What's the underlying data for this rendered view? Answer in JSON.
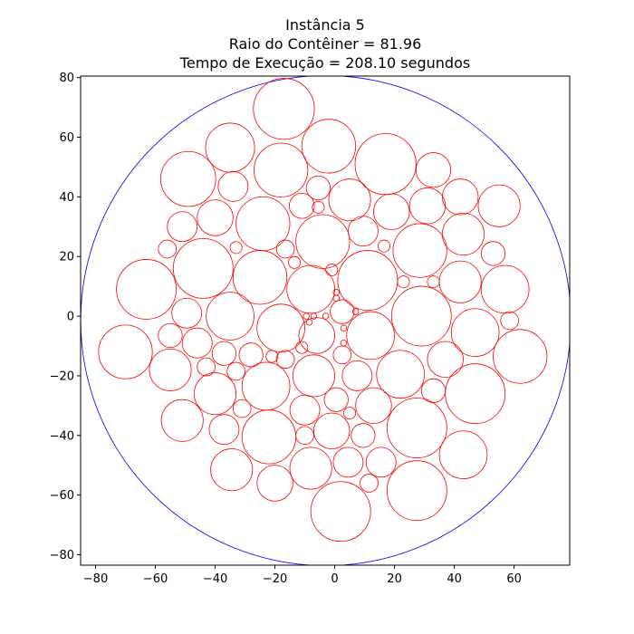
{
  "chart_data": {
    "type": "scatter",
    "title_lines": [
      "Instância 5",
      "Raio do Contêiner = 81.96",
      "Tempo de Execução = 208.10 segundos"
    ],
    "xlabel": "",
    "ylabel": "",
    "xlim": [
      -85,
      78.6
    ],
    "ylim": [
      -83.5,
      80.5
    ],
    "xticks": [
      -80,
      -60,
      -40,
      -20,
      0,
      20,
      40,
      60
    ],
    "yticks": [
      -80,
      -60,
      -40,
      -20,
      0,
      20,
      40,
      60,
      80
    ],
    "grid": false,
    "aspect": "equal",
    "container": {
      "center": [
        -3.0,
        -1.5
      ],
      "radius": 81.96,
      "color": "#0000ff"
    },
    "circle_color": "#ff0000",
    "circles": [
      [
        -17.0,
        69.5,
        10.2
      ],
      [
        -2.0,
        57.0,
        9.0
      ],
      [
        17.0,
        51.0,
        10.2
      ],
      [
        33.0,
        49.0,
        5.8
      ],
      [
        -35.0,
        56.5,
        8.2
      ],
      [
        -18.0,
        49.0,
        9.0
      ],
      [
        -49.0,
        46.0,
        9.2
      ],
      [
        -34.0,
        43.5,
        5.0
      ],
      [
        -5.5,
        43.0,
        4.0
      ],
      [
        5.0,
        39.0,
        7.0
      ],
      [
        -11.0,
        37.0,
        4.2
      ],
      [
        -5.5,
        36.5,
        2.0
      ],
      [
        19.0,
        35.0,
        6.0
      ],
      [
        31.0,
        37.0,
        6.0
      ],
      [
        42.0,
        40.0,
        6.0
      ],
      [
        55.0,
        37.0,
        7.0
      ],
      [
        -40.0,
        33.0,
        6.0
      ],
      [
        -51.0,
        30.0,
        5.0
      ],
      [
        -24.0,
        31.0,
        9.0
      ],
      [
        -4.0,
        25.0,
        9.0
      ],
      [
        9.5,
        28.5,
        5.0
      ],
      [
        43.0,
        27.5,
        7.0
      ],
      [
        -56.0,
        22.5,
        3.0
      ],
      [
        -33.0,
        23.0,
        2.0
      ],
      [
        -16.5,
        22.5,
        3.0
      ],
      [
        16.5,
        23.5,
        2.0
      ],
      [
        28.5,
        22.0,
        9.0
      ],
      [
        53.0,
        21.0,
        4.0
      ],
      [
        -63.0,
        9.0,
        10.0
      ],
      [
        -44.0,
        16.0,
        10.0
      ],
      [
        -25.0,
        13.0,
        9.0
      ],
      [
        -13.5,
        18.0,
        2.0
      ],
      [
        -1.0,
        15.5,
        2.0
      ],
      [
        11.0,
        12.0,
        10.0
      ],
      [
        -8.0,
        9.0,
        8.0
      ],
      [
        23.0,
        11.5,
        2.0
      ],
      [
        33.0,
        11.5,
        2.0
      ],
      [
        42.0,
        11.5,
        7.0
      ],
      [
        57.0,
        9.0,
        8.0
      ],
      [
        0.5,
        8.0,
        1.0
      ],
      [
        0.5,
        6.0,
        1.0
      ],
      [
        -49.5,
        1.0,
        5.0
      ],
      [
        -35.0,
        0.0,
        8.0
      ],
      [
        -18.0,
        -4.0,
        8.0
      ],
      [
        -7.0,
        0.0,
        1.0
      ],
      [
        -8.5,
        -2.0,
        1.0
      ],
      [
        -9.5,
        0.0,
        1.0
      ],
      [
        -3.0,
        0.0,
        1.0
      ],
      [
        2.5,
        1.5,
        4.0
      ],
      [
        7.0,
        1.5,
        1.0
      ],
      [
        29.0,
        0.0,
        10.0
      ],
      [
        58.5,
        -1.5,
        3.0
      ],
      [
        -55.0,
        -6.5,
        4.0
      ],
      [
        -46.0,
        -9.0,
        5.0
      ],
      [
        -6.0,
        -6.5,
        6.0
      ],
      [
        3.0,
        -4.0,
        1.0
      ],
      [
        12.0,
        -6.5,
        8.0
      ],
      [
        47.0,
        -5.5,
        8.0
      ],
      [
        -70.0,
        -12.0,
        9.0
      ],
      [
        -55.0,
        -18.0,
        7.0
      ],
      [
        -37.0,
        -12.5,
        4.0
      ],
      [
        -28.0,
        -13.0,
        4.0
      ],
      [
        -21.0,
        -13.5,
        2.0
      ],
      [
        -16.5,
        -14.5,
        3.0
      ],
      [
        -11.0,
        -10.5,
        2.0
      ],
      [
        2.5,
        -13.0,
        3.0
      ],
      [
        3.0,
        -9.0,
        1.0
      ],
      [
        37.0,
        -14.5,
        6.0
      ],
      [
        62.0,
        -13.5,
        9.0
      ],
      [
        -43.0,
        -17.0,
        3.0
      ],
      [
        -33.0,
        -18.5,
        3.0
      ],
      [
        -7.0,
        -20.0,
        7.0
      ],
      [
        7.5,
        -20.0,
        5.0
      ],
      [
        22.0,
        -19.5,
        8.0
      ],
      [
        -23.0,
        -23.5,
        8.0
      ],
      [
        0.5,
        -28.0,
        4.0
      ],
      [
        33.0,
        -25.0,
        4.0
      ],
      [
        47.0,
        -26.0,
        10.0
      ],
      [
        -40.0,
        -26.0,
        7.0
      ],
      [
        -31.0,
        -31.0,
        3.0
      ],
      [
        -10.0,
        -31.5,
        5.0
      ],
      [
        5.0,
        -32.5,
        2.0
      ],
      [
        13.0,
        -30.0,
        6.0
      ],
      [
        -51.0,
        -35.0,
        7.0
      ],
      [
        -37.0,
        -38.0,
        5.0
      ],
      [
        -22.0,
        -40.5,
        9.0
      ],
      [
        -10.0,
        -40.0,
        3.0
      ],
      [
        -1.0,
        -38.5,
        6.0
      ],
      [
        9.5,
        -40.0,
        4.0
      ],
      [
        27.5,
        -37.5,
        10.0
      ],
      [
        4.5,
        -49.0,
        5.0
      ],
      [
        15.5,
        -49.0,
        5.0
      ],
      [
        -8.0,
        -51.0,
        7.0
      ],
      [
        43.0,
        -46.5,
        8.0
      ],
      [
        -34.5,
        -51.5,
        7.0
      ],
      [
        -20.0,
        -56.0,
        6.0
      ],
      [
        11.5,
        -56.0,
        3.0
      ],
      [
        27.5,
        -58.5,
        10.0
      ],
      [
        2.0,
        -65.5,
        10.0
      ]
    ]
  }
}
